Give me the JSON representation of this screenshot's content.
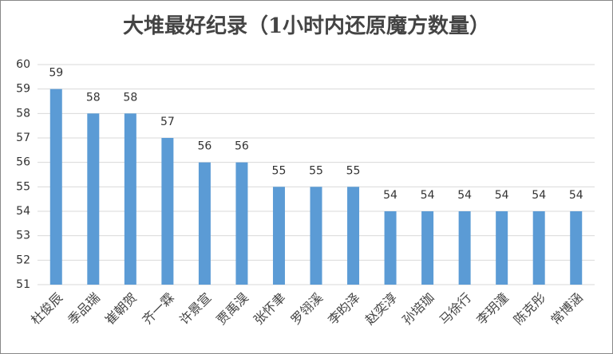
{
  "chart_data": {
    "type": "bar",
    "title": "大堆最好纪录（1小时内还原魔方数量）",
    "categories": [
      "杜俊辰",
      "季品瑞",
      "崔朝贺",
      "齐一霖",
      "许景宣",
      "贾禹淏",
      "张怀聿",
      "罗翎溪",
      "李昀泽",
      "赵奕淳",
      "孙培珈",
      "马徐行",
      "李玥潼",
      "陈克彤",
      "常博涵"
    ],
    "values": [
      59,
      58,
      58,
      57,
      56,
      56,
      55,
      55,
      55,
      54,
      54,
      54,
      54,
      54,
      54
    ],
    "color": "#5b9bd5",
    "ylim": [
      51,
      60
    ],
    "yticks": [
      51,
      52,
      53,
      54,
      55,
      56,
      57,
      58,
      59,
      60
    ],
    "grid": true
  }
}
